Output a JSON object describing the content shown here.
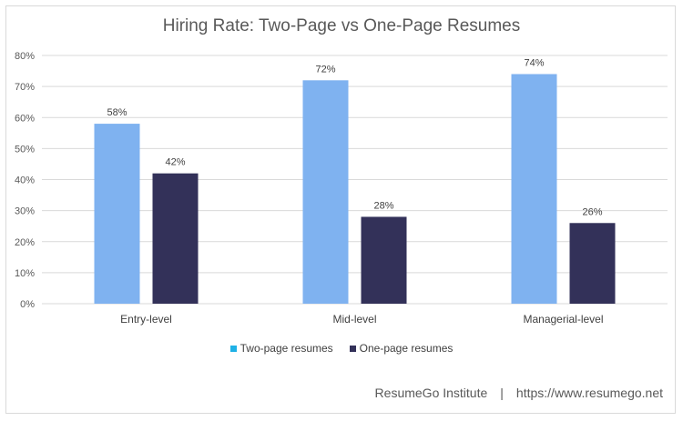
{
  "chart_data": {
    "type": "bar",
    "title": "Hiring Rate: Two-Page vs One-Page Resumes",
    "categories": [
      "Entry-level",
      "Mid-level",
      "Managerial-level"
    ],
    "series": [
      {
        "name": "Two-page resumes",
        "values": [
          58,
          72,
          74
        ],
        "labels": [
          "58%",
          "72%",
          "74%"
        ],
        "color": "#7fb2f0"
      },
      {
        "name": "One-page resumes",
        "values": [
          42,
          28,
          26
        ],
        "labels": [
          "42%",
          "28%",
          "26%"
        ],
        "color": "#333159"
      }
    ],
    "ylim": [
      0,
      80
    ],
    "yticks": [
      0,
      10,
      20,
      30,
      40,
      50,
      60,
      70,
      80
    ],
    "ytick_labels": [
      "0%",
      "10%",
      "20%",
      "30%",
      "40%",
      "50%",
      "60%",
      "70%",
      "80%"
    ],
    "grid": true,
    "legend_position": "bottom",
    "legend_marker_colors": [
      "#1fb1e6",
      "#333159"
    ],
    "grid_color": "#d9d9d9"
  },
  "footer": {
    "source": "ResumeGo Institute",
    "separator": "|",
    "url": "https://www.resumego.net"
  }
}
